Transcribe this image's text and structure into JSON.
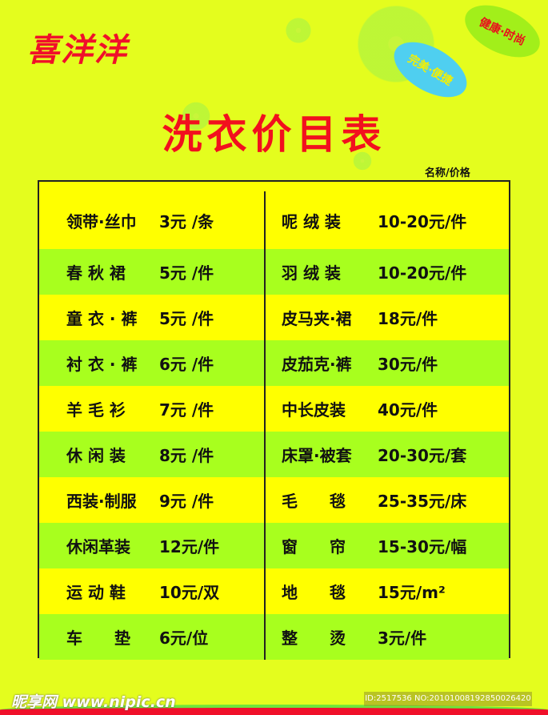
{
  "brand": "喜洋洋",
  "slogans": [
    "健康·时尚",
    "完美·便捷"
  ],
  "title": "洗衣价目表",
  "header": "名称/价格",
  "colors": {
    "background": "#e4fd1e",
    "row_yellow": "#ffff00",
    "row_green": "#a8ff1e",
    "title": "#f2101e"
  },
  "rows": [
    {
      "left_name": "领带·丝巾",
      "left_price": "3元 /条",
      "right_name": "呢 绒 装",
      "right_price": "10-20元/件"
    },
    {
      "left_name": "春 秋 裙",
      "left_price": "5元 /件",
      "right_name": "羽 绒 装",
      "right_price": "10-20元/件"
    },
    {
      "left_name": "童 衣 · 裤",
      "left_price": "5元 /件",
      "right_name": "皮马夹·裙",
      "right_price": "18元/件"
    },
    {
      "left_name": "衬 衣 · 裤",
      "left_price": "6元 /件",
      "right_name": "皮茄克·裤",
      "right_price": "30元/件"
    },
    {
      "left_name": "羊 毛 衫",
      "left_price": "7元 /件",
      "right_name": "中长皮装",
      "right_price": "40元/件"
    },
    {
      "left_name": "休 闲 装",
      "left_price": "8元 /件",
      "right_name": "床罩·被套",
      "right_price": "20-30元/套"
    },
    {
      "left_name": "西装·制服",
      "left_price": "9元 /件",
      "right_name": "毛　　毯",
      "right_price": "25-35元/床"
    },
    {
      "left_name": "休闲革装",
      "left_price": "12元/件",
      "right_name": "窗　　帘",
      "right_price": "15-30元/幅"
    },
    {
      "left_name": "运 动 鞋",
      "left_price": "10元/双",
      "right_name": "地　　毯",
      "right_price": "15元/m²"
    },
    {
      "left_name": "车　　垫",
      "left_price": "6元/位",
      "right_name": "整　　烫",
      "right_price": "3元/件"
    }
  ],
  "watermark": "昵享网 www.nipic.cn",
  "image_id": "ID:2517536 NO:20101008192850026420"
}
